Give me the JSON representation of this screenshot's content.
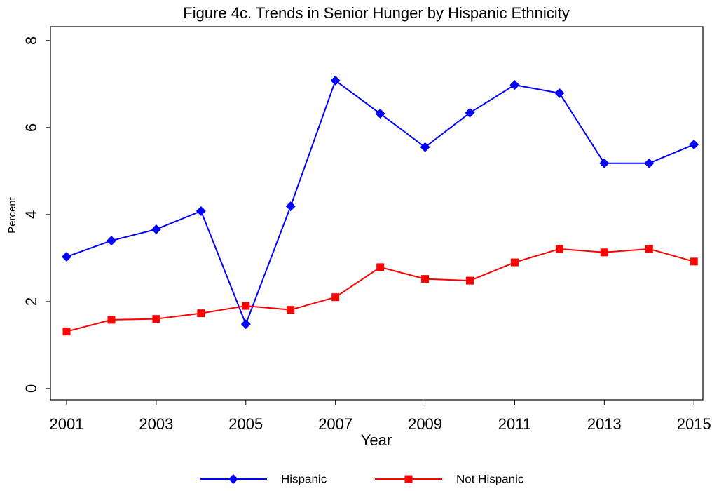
{
  "chart_data": {
    "type": "line",
    "title": "Figure 4c.  Trends in Senior Hunger by Hispanic Ethnicity",
    "x_label": "Year",
    "y_label": "Percent",
    "x": [
      2001,
      2002,
      2003,
      2004,
      2005,
      2006,
      2007,
      2008,
      2009,
      2010,
      2011,
      2012,
      2013,
      2014,
      2015
    ],
    "series": [
      {
        "name": "Hispanic",
        "color": "#0000ff",
        "marker": "diamond",
        "values": [
          3.03,
          3.4,
          3.66,
          4.08,
          1.48,
          4.19,
          7.08,
          6.32,
          5.55,
          6.34,
          6.98,
          6.79,
          5.18,
          5.18,
          5.61
        ]
      },
      {
        "name": "Not Hispanic",
        "color": "#ff0000",
        "marker": "square",
        "values": [
          1.31,
          1.58,
          1.6,
          1.73,
          1.9,
          1.81,
          2.1,
          2.79,
          2.52,
          2.48,
          2.9,
          3.21,
          3.13,
          3.21,
          2.92
        ]
      }
    ],
    "xlim": [
      2000.64,
      2015.2
    ],
    "xticks": [
      2001,
      2003,
      2005,
      2007,
      2009,
      2011,
      2013,
      2015
    ],
    "ylim": [
      -0.26,
      8.32
    ],
    "yticks": [
      0,
      2,
      4,
      6,
      8
    ],
    "grid": false,
    "legend": "bottom"
  }
}
